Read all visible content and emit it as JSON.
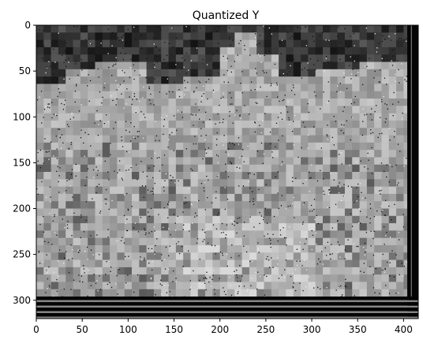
{
  "chart_data": {
    "type": "heatmap",
    "title": "Quantized Y",
    "xlabel": "",
    "ylabel": "",
    "xlim": [
      0,
      416
    ],
    "ylim": [
      320,
      0
    ],
    "x_ticks": [
      0,
      50,
      100,
      150,
      200,
      250,
      300,
      350,
      400
    ],
    "y_ticks": [
      0,
      50,
      100,
      150,
      200,
      250,
      300
    ],
    "colormap": "gray",
    "image_description_regions": {
      "dark_top_band_rows": [
        0,
        60
      ],
      "dark_right_border_cols": [
        404,
        416
      ],
      "dark_bottom_stripes_rows": [
        296,
        320
      ]
    },
    "grid": false
  }
}
